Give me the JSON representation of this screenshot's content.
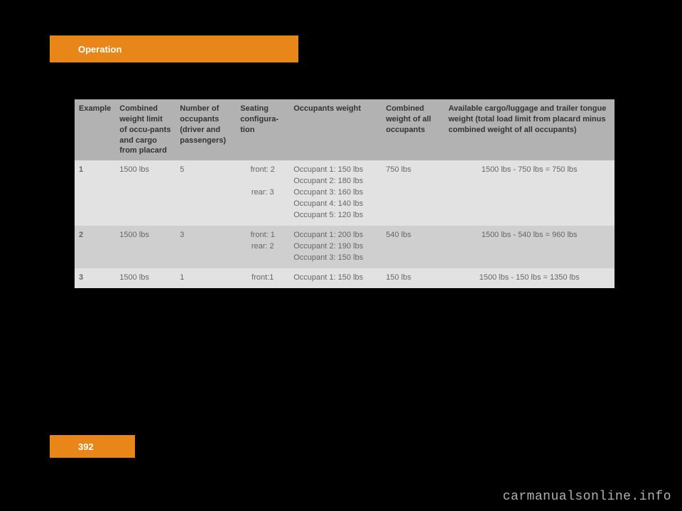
{
  "header": {
    "tab_label": "Operation"
  },
  "footer": {
    "page_number": "392",
    "watermark": "carmanualsonline.info"
  },
  "colors": {
    "accent": "#e8861a",
    "bg": "#000000",
    "th_bg": "#b2b2b2",
    "row_light": "#e2e2e2",
    "row_dark": "#cfcfcf"
  },
  "table": {
    "headers": {
      "example": "Example",
      "limit": "Combined weight limit of occu-pants and cargo from placard",
      "occ": "Number of occupants (driver and passengers)",
      "seat": "Seating configura-tion",
      "weight": "Occupants weight",
      "combined": "Combined weight of all occupants",
      "cargo": "Available cargo/luggage and trailer tongue weight (total load limit from placard minus combined weight of all occupants)"
    },
    "rows": [
      {
        "example": "1",
        "limit": "1500 lbs",
        "occ": "5",
        "seat": "front: 2\n\nrear: 3",
        "weight": "Occupant 1: 150 lbs\nOccupant 2: 180 lbs\nOccupant 3: 160 lbs\nOccupant 4: 140 lbs\nOccupant 5: 120 lbs",
        "combined": "750 lbs",
        "cargo": "1500 lbs - 750 lbs = 750 lbs"
      },
      {
        "example": "2",
        "limit": "1500 lbs",
        "occ": "3",
        "seat": "front: 1\nrear: 2",
        "weight": "Occupant 1: 200 lbs\nOccupant 2: 190 lbs\nOccupant 3: 150 lbs",
        "combined": "540 lbs",
        "cargo": "1500 lbs - 540 lbs = 960 lbs"
      },
      {
        "example": "3",
        "limit": "1500 lbs",
        "occ": "1",
        "seat": "front:1",
        "weight": "Occupant 1: 150 lbs",
        "combined": "150 lbs",
        "cargo": "1500 lbs - 150 lbs = 1350 lbs"
      }
    ]
  }
}
